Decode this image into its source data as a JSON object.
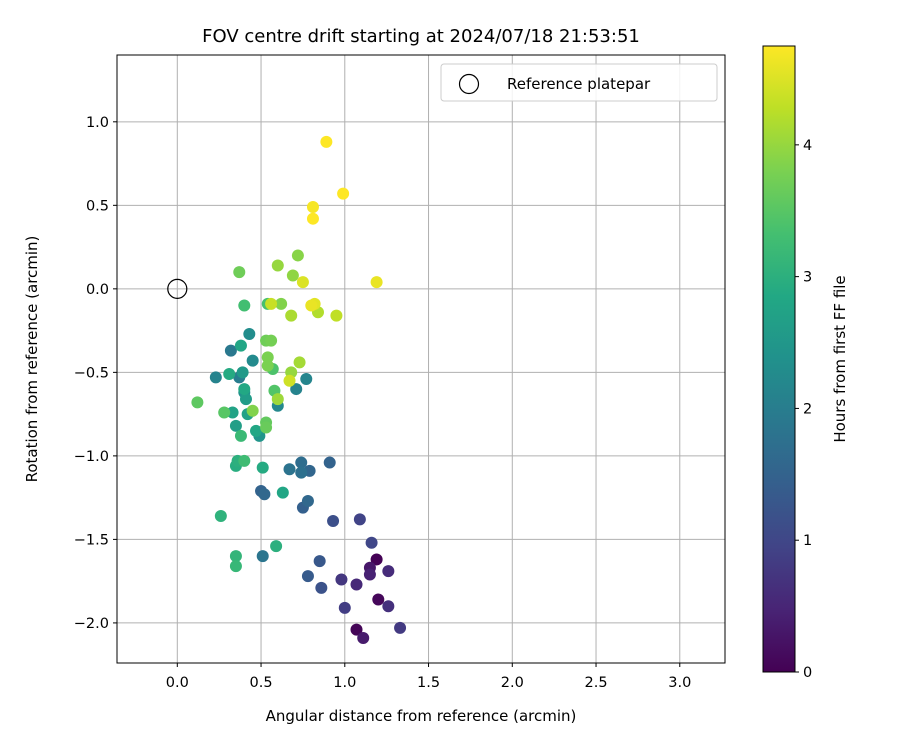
{
  "chart_data": {
    "type": "scatter",
    "title": "FOV centre drift starting at 2024/07/18 21:53:51",
    "xlabel": "Angular distance from reference (arcmin)",
    "ylabel": "Rotation from reference (arcmin)",
    "xlim": [
      -0.36,
      3.27
    ],
    "ylim": [
      -2.24,
      1.4
    ],
    "xticks": [
      0.0,
      0.5,
      1.0,
      1.5,
      2.0,
      2.5,
      3.0
    ],
    "xtick_labels": [
      "0.0",
      "0.5",
      "1.0",
      "1.5",
      "2.0",
      "2.5",
      "3.0"
    ],
    "yticks": [
      -2.0,
      -1.5,
      -1.0,
      -0.5,
      0.0,
      0.5,
      1.0
    ],
    "ytick_labels": [
      "−2.0",
      "−1.5",
      "−1.0",
      "−0.5",
      "0.0",
      "0.5",
      "1.0"
    ],
    "grid": true,
    "legend": {
      "position": "upper right",
      "entries": [
        {
          "label": "Reference platepar",
          "marker": "open-circle"
        }
      ]
    },
    "reference_point": {
      "x": 0.0,
      "y": 0.0
    },
    "colorbar": {
      "label": "Hours from first FF file",
      "colormap": "viridis",
      "range": [
        0,
        4.75
      ],
      "ticks": [
        0,
        1,
        2,
        3,
        4
      ],
      "tick_labels": [
        "0",
        "1",
        "2",
        "3",
        "4"
      ]
    },
    "points": [
      {
        "x": 1.19,
        "y": -1.62,
        "c": 0.02
      },
      {
        "x": 1.07,
        "y": -2.04,
        "c": 0.05
      },
      {
        "x": 1.2,
        "y": -1.86,
        "c": 0.08
      },
      {
        "x": 1.15,
        "y": -1.67,
        "c": 0.3
      },
      {
        "x": 1.11,
        "y": -2.09,
        "c": 0.35
      },
      {
        "x": 1.15,
        "y": -1.71,
        "c": 0.45
      },
      {
        "x": 1.07,
        "y": -1.77,
        "c": 0.55
      },
      {
        "x": 1.26,
        "y": -1.69,
        "c": 0.6
      },
      {
        "x": 1.26,
        "y": -1.9,
        "c": 0.65
      },
      {
        "x": 0.98,
        "y": -1.74,
        "c": 0.75
      },
      {
        "x": 1.0,
        "y": -1.91,
        "c": 0.85
      },
      {
        "x": 1.33,
        "y": -2.03,
        "c": 0.8
      },
      {
        "x": 1.09,
        "y": -1.38,
        "c": 0.95
      },
      {
        "x": 1.16,
        "y": -1.52,
        "c": 1.0
      },
      {
        "x": 0.93,
        "y": -1.39,
        "c": 1.15
      },
      {
        "x": 0.86,
        "y": -1.79,
        "c": 1.2
      },
      {
        "x": 0.85,
        "y": -1.63,
        "c": 1.3
      },
      {
        "x": 0.78,
        "y": -1.72,
        "c": 1.35
      },
      {
        "x": 0.75,
        "y": -1.31,
        "c": 1.45
      },
      {
        "x": 0.91,
        "y": -1.04,
        "c": 1.5
      },
      {
        "x": 0.79,
        "y": -1.09,
        "c": 1.55
      },
      {
        "x": 0.78,
        "y": -1.27,
        "c": 1.6
      },
      {
        "x": 0.74,
        "y": -1.04,
        "c": 1.7
      },
      {
        "x": 0.74,
        "y": -1.1,
        "c": 1.75
      },
      {
        "x": 0.67,
        "y": -1.08,
        "c": 1.8
      },
      {
        "x": 0.5,
        "y": -1.21,
        "c": 1.5
      },
      {
        "x": 0.52,
        "y": -1.23,
        "c": 1.6
      },
      {
        "x": 0.51,
        "y": -1.6,
        "c": 1.85
      },
      {
        "x": 0.32,
        "y": -0.37,
        "c": 1.9
      },
      {
        "x": 0.37,
        "y": -0.53,
        "c": 2.0
      },
      {
        "x": 0.23,
        "y": -0.53,
        "c": 2.1
      },
      {
        "x": 0.71,
        "y": -0.6,
        "c": 2.1
      },
      {
        "x": 0.77,
        "y": -0.54,
        "c": 2.15
      },
      {
        "x": 0.6,
        "y": -0.7,
        "c": 2.2
      },
      {
        "x": 0.45,
        "y": -0.43,
        "c": 2.25
      },
      {
        "x": 0.43,
        "y": -0.27,
        "c": 2.3
      },
      {
        "x": 0.4,
        "y": -0.62,
        "c": 2.4
      },
      {
        "x": 0.49,
        "y": -0.88,
        "c": 2.45
      },
      {
        "x": 0.39,
        "y": -0.5,
        "c": 2.55
      },
      {
        "x": 0.41,
        "y": -0.66,
        "c": 2.6
      },
      {
        "x": 0.35,
        "y": -0.82,
        "c": 2.65
      },
      {
        "x": 0.42,
        "y": -0.75,
        "c": 2.7
      },
      {
        "x": 0.33,
        "y": -0.74,
        "c": 2.75
      },
      {
        "x": 0.38,
        "y": -0.34,
        "c": 2.8
      },
      {
        "x": 0.47,
        "y": -0.85,
        "c": 2.8
      },
      {
        "x": 0.63,
        "y": -1.22,
        "c": 2.8
      },
      {
        "x": 0.4,
        "y": -0.6,
        "c": 2.85
      },
      {
        "x": 0.31,
        "y": -0.51,
        "c": 2.9
      },
      {
        "x": 0.51,
        "y": -1.07,
        "c": 2.9
      },
      {
        "x": 0.35,
        "y": -1.06,
        "c": 2.95
      },
      {
        "x": 0.36,
        "y": -1.03,
        "c": 3.0
      },
      {
        "x": 0.59,
        "y": -1.54,
        "c": 3.0
      },
      {
        "x": 0.26,
        "y": -1.36,
        "c": 3.05
      },
      {
        "x": 0.35,
        "y": -1.6,
        "c": 3.1
      },
      {
        "x": 0.35,
        "y": -1.66,
        "c": 3.15
      },
      {
        "x": 0.38,
        "y": -0.88,
        "c": 3.2
      },
      {
        "x": 0.4,
        "y": -1.03,
        "c": 3.25
      },
      {
        "x": 0.4,
        "y": -0.1,
        "c": 3.3
      },
      {
        "x": 0.54,
        "y": -0.09,
        "c": 3.35
      },
      {
        "x": 0.57,
        "y": -0.48,
        "c": 3.4
      },
      {
        "x": 0.58,
        "y": -0.61,
        "c": 3.45
      },
      {
        "x": 0.28,
        "y": -0.74,
        "c": 3.5
      },
      {
        "x": 0.12,
        "y": -0.68,
        "c": 3.55
      },
      {
        "x": 0.53,
        "y": -0.8,
        "c": 3.6
      },
      {
        "x": 0.53,
        "y": -0.83,
        "c": 3.65
      },
      {
        "x": 0.37,
        "y": 0.1,
        "c": 3.7
      },
      {
        "x": 0.53,
        "y": -0.31,
        "c": 3.7
      },
      {
        "x": 0.56,
        "y": -0.31,
        "c": 3.75
      },
      {
        "x": 0.54,
        "y": -0.41,
        "c": 3.8
      },
      {
        "x": 0.54,
        "y": -0.46,
        "c": 3.8
      },
      {
        "x": 0.45,
        "y": -0.73,
        "c": 3.85
      },
      {
        "x": 0.62,
        "y": -0.09,
        "c": 3.85
      },
      {
        "x": 0.72,
        "y": 0.2,
        "c": 3.9
      },
      {
        "x": 0.69,
        "y": 0.08,
        "c": 3.95
      },
      {
        "x": 0.6,
        "y": 0.14,
        "c": 4.0
      },
      {
        "x": 0.68,
        "y": -0.5,
        "c": 4.0
      },
      {
        "x": 0.6,
        "y": -0.66,
        "c": 4.05
      },
      {
        "x": 0.73,
        "y": -0.44,
        "c": 4.1
      },
      {
        "x": 0.68,
        "y": -0.16,
        "c": 4.15
      },
      {
        "x": 0.84,
        "y": -0.14,
        "c": 4.2
      },
      {
        "x": 0.95,
        "y": -0.16,
        "c": 4.3
      },
      {
        "x": 0.56,
        "y": -0.09,
        "c": 4.35
      },
      {
        "x": 0.67,
        "y": -0.55,
        "c": 4.4
      },
      {
        "x": 0.75,
        "y": 0.04,
        "c": 4.5
      },
      {
        "x": 0.82,
        "y": -0.09,
        "c": 4.55
      },
      {
        "x": 0.8,
        "y": -0.1,
        "c": 4.6
      },
      {
        "x": 1.19,
        "y": 0.04,
        "c": 4.6
      },
      {
        "x": 0.81,
        "y": 0.49,
        "c": 4.7
      },
      {
        "x": 0.81,
        "y": 0.42,
        "c": 4.75
      },
      {
        "x": 0.99,
        "y": 0.57,
        "c": 4.75
      },
      {
        "x": 0.89,
        "y": 0.88,
        "c": 4.75
      }
    ]
  }
}
